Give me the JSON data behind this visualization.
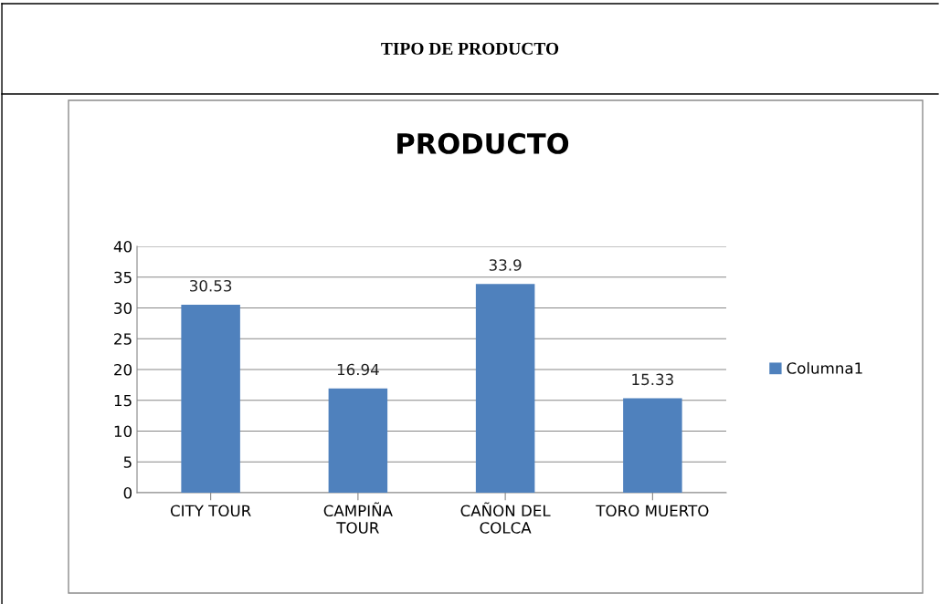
{
  "chart_data": {
    "type": "bar",
    "title": "TIPO DE PRODUCTO",
    "subtitle": "PRODUCTO",
    "categories": [
      "CITY TOUR",
      "CAMPIÑA\nTOUR",
      "CAÑON DEL\nCOLCA",
      "TORO MUERTO"
    ],
    "series": [
      {
        "name": "Columna1",
        "color": "#4f81bd",
        "values": [
          30.53,
          16.94,
          33.9,
          15.33
        ]
      }
    ],
    "ylim": [
      0,
      40
    ],
    "yticks": [
      0,
      5,
      10,
      15,
      20,
      25,
      30,
      35,
      40
    ],
    "grid": "y",
    "legend": "right",
    "data_labels": true
  }
}
